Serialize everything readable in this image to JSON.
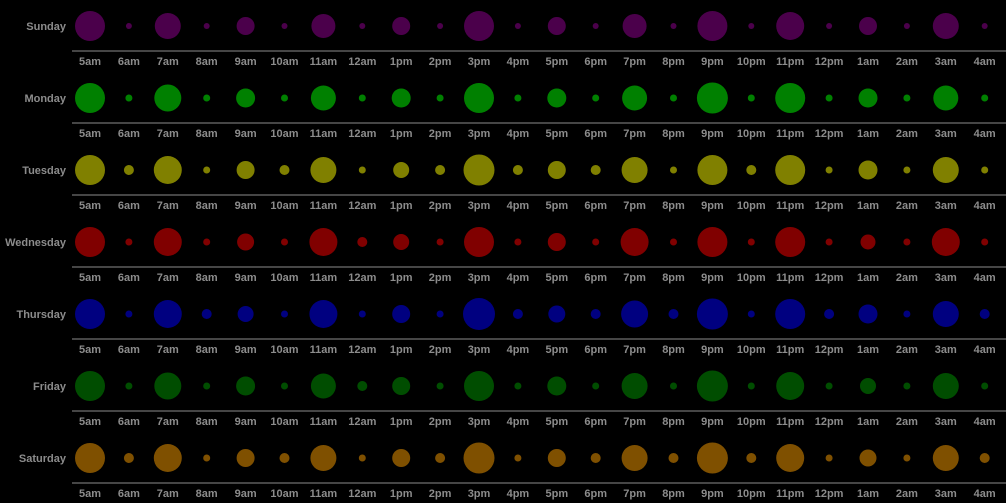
{
  "chart_data": {
    "type": "bubble",
    "categories": [
      "5am",
      "6am",
      "7am",
      "8am",
      "9am",
      "10am",
      "11am",
      "12am",
      "1pm",
      "2pm",
      "3pm",
      "4pm",
      "5pm",
      "6pm",
      "7pm",
      "8pm",
      "9pm",
      "10pm",
      "11pm",
      "12pm",
      "1am",
      "2am",
      "3am",
      "4am"
    ],
    "series": [
      {
        "name": "Sunday",
        "color": "#4b004b",
        "values": [
          15,
          3,
          13,
          3,
          9,
          3,
          12,
          3,
          9,
          3,
          15,
          3,
          9,
          3,
          12,
          3,
          15,
          3,
          14,
          3,
          9,
          3,
          13,
          3
        ]
      },
      {
        "name": "Monday",
        "color": "#008000",
        "values": [
          15,
          3.5,
          13.5,
          3.5,
          9.5,
          3.5,
          12.5,
          3.5,
          9.5,
          3.5,
          15,
          3.5,
          9.5,
          3.5,
          12.5,
          3.5,
          15.5,
          3.5,
          15,
          3.5,
          9.5,
          3.5,
          12.5,
          3.5
        ]
      },
      {
        "name": "Tuesday",
        "color": "#808000",
        "values": [
          15,
          5,
          14,
          3.5,
          9,
          5,
          13,
          3.5,
          8,
          5,
          15.5,
          5,
          9,
          5,
          13,
          3.5,
          15,
          5,
          15,
          3.5,
          9.5,
          3.5,
          13,
          3.5
        ]
      },
      {
        "name": "Wednesday",
        "color": "#800000",
        "values": [
          15,
          3.5,
          14,
          3.5,
          8.5,
          3.5,
          14,
          5,
          8,
          3.5,
          15,
          3.5,
          9,
          3.5,
          14,
          3.5,
          15,
          3.5,
          15,
          3.5,
          7.5,
          3.5,
          14,
          3.5
        ]
      },
      {
        "name": "Thursday",
        "color": "#000080",
        "values": [
          15,
          3.5,
          14,
          5,
          8,
          3.5,
          14,
          3.5,
          9,
          3.5,
          16,
          5,
          8.5,
          5,
          13.5,
          5,
          15.5,
          3.5,
          15,
          5,
          9.5,
          3.5,
          13,
          5
        ]
      },
      {
        "name": "Friday",
        "color": "#004d00",
        "values": [
          15,
          3.5,
          13.5,
          3.5,
          9.5,
          3.5,
          12.5,
          5,
          9,
          3.5,
          15,
          3.5,
          9.5,
          3.5,
          13,
          3.5,
          15.5,
          3.5,
          14,
          3.5,
          8,
          3.5,
          13,
          3.5
        ]
      },
      {
        "name": "Saturday",
        "color": "#7f5000",
        "values": [
          15,
          5,
          14,
          3.5,
          9,
          5,
          13,
          3.5,
          9,
          5,
          15.5,
          3.5,
          9,
          5,
          13,
          5,
          15.5,
          5,
          14,
          3.5,
          8.5,
          3.5,
          13,
          5
        ]
      }
    ]
  }
}
